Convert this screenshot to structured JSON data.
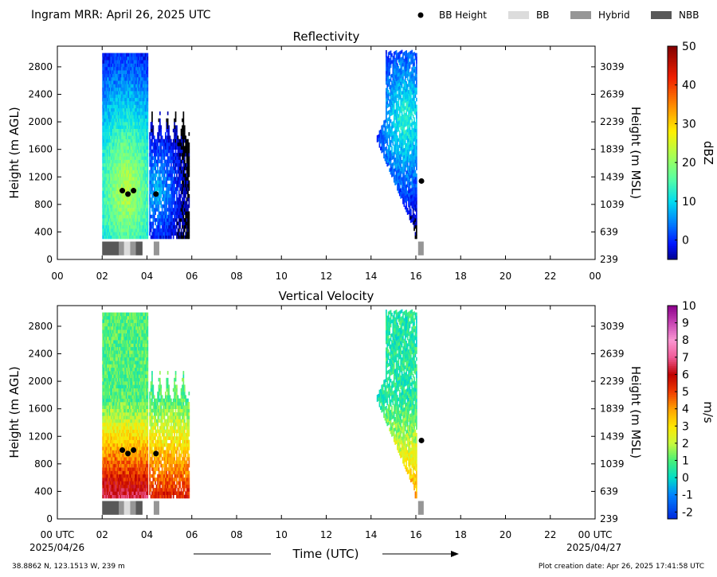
{
  "header": {
    "title": "Ingram MRR:  April 26, 2025 UTC",
    "legend": [
      {
        "label": "BB Height",
        "kind": "dot",
        "color": "#000000"
      },
      {
        "label": "BB",
        "kind": "swatch",
        "color": "#dcdcdc"
      },
      {
        "label": "Hybrid",
        "kind": "swatch",
        "color": "#969696"
      },
      {
        "label": "NBB",
        "kind": "swatch",
        "color": "#585858"
      }
    ]
  },
  "footer": {
    "location": "38.8862 N, 123.1513 W, 239 m",
    "creation": "Plot creation date: Apr 26, 2025 17:41:58 UTC",
    "xlabel": "Time (UTC)",
    "date_start": "2025/04/26",
    "date_end": "2025/04/27"
  },
  "chart_data": [
    {
      "type": "heatmap",
      "title": "Reflectivity",
      "ylabel": "Height (m AGL)",
      "ylabel_right": "Height (m MSL)",
      "xlim": [
        0,
        24
      ],
      "ylim": [
        0,
        3100
      ],
      "x_ticks": [
        "00",
        "02",
        "04",
        "06",
        "08",
        "10",
        "12",
        "14",
        "16",
        "18",
        "20",
        "22",
        "00"
      ],
      "y_ticks": [
        0,
        400,
        800,
        1200,
        1600,
        2000,
        2400,
        2800
      ],
      "y_ticks_right": [
        "239",
        "639",
        "1039",
        "1439",
        "1839",
        "2239",
        "2639",
        "3039"
      ],
      "colorbar": {
        "label": "dBZ",
        "range": [
          -5,
          50
        ],
        "ticks": [
          "0",
          "10",
          "20",
          "30",
          "40",
          "50"
        ],
        "tick_values": [
          0,
          10,
          20,
          30,
          40,
          50
        ],
        "colormap": "jet"
      },
      "bb_height": [
        {
          "time": 2.9,
          "height": 1000
        },
        {
          "time": 3.15,
          "height": 950
        },
        {
          "time": 3.4,
          "height": 1000
        },
        {
          "time": 4.4,
          "height": 950
        },
        {
          "time": 16.25,
          "height": 1140
        }
      ],
      "bb_class": [
        {
          "start": 2.0,
          "end": 2.75,
          "class": "NBB"
        },
        {
          "start": 2.75,
          "end": 2.98,
          "class": "Hybrid"
        },
        {
          "start": 2.98,
          "end": 3.25,
          "class": "BB"
        },
        {
          "start": 3.25,
          "end": 3.5,
          "class": "Hybrid"
        },
        {
          "start": 3.5,
          "end": 3.8,
          "class": "NBB"
        },
        {
          "start": 4.3,
          "end": 4.55,
          "class": "Hybrid"
        },
        {
          "start": 16.1,
          "end": 16.35,
          "class": "Hybrid"
        }
      ],
      "echo_regions": [
        {
          "start": 2.0,
          "end": 4.0,
          "top": 3000,
          "peak": 24,
          "peak_time": 3.05,
          "peak_height": 1000
        },
        {
          "start": 4.1,
          "end": 5.85,
          "top": 2200,
          "peak": 8,
          "peak_time": 4.45,
          "peak_height": 1000
        },
        {
          "start": 14.0,
          "end": 16.05,
          "top": 3000,
          "peak": 14,
          "peak_time": 15.5,
          "peak_height": 2000
        }
      ]
    },
    {
      "type": "heatmap",
      "title": "Vertical Velocity",
      "ylabel": "Height (m AGL)",
      "ylabel_right": "Height (m MSL)",
      "xlim": [
        0,
        24
      ],
      "ylim": [
        0,
        3100
      ],
      "x_ticks": [
        "00 UTC",
        "02",
        "04",
        "06",
        "08",
        "10",
        "12",
        "14",
        "16",
        "18",
        "20",
        "22",
        "00 UTC"
      ],
      "y_ticks": [
        0,
        400,
        800,
        1200,
        1600,
        2000,
        2400,
        2800
      ],
      "y_ticks_right": [
        "239",
        "639",
        "1039",
        "1439",
        "1839",
        "2239",
        "2639",
        "3039"
      ],
      "colorbar": {
        "label": "m/s",
        "range": [
          -2.4,
          10
        ],
        "ticks": [
          "-2",
          "-1",
          "0",
          "1",
          "2",
          "3",
          "4",
          "5",
          "6",
          "7",
          "8",
          "9",
          "10"
        ],
        "tick_values": [
          -2,
          -1,
          0,
          1,
          2,
          3,
          4,
          5,
          6,
          7,
          8,
          9,
          10
        ],
        "colormap": "velocity"
      },
      "bb_height": [
        {
          "time": 2.9,
          "height": 1000
        },
        {
          "time": 3.15,
          "height": 950
        },
        {
          "time": 3.4,
          "height": 1000
        },
        {
          "time": 4.4,
          "height": 950
        },
        {
          "time": 16.25,
          "height": 1140
        }
      ],
      "bb_class": [
        {
          "start": 2.0,
          "end": 2.75,
          "class": "NBB"
        },
        {
          "start": 2.75,
          "end": 2.98,
          "class": "Hybrid"
        },
        {
          "start": 2.98,
          "end": 3.25,
          "class": "BB"
        },
        {
          "start": 3.25,
          "end": 3.5,
          "class": "Hybrid"
        },
        {
          "start": 3.5,
          "end": 3.8,
          "class": "NBB"
        },
        {
          "start": 4.3,
          "end": 4.55,
          "class": "Hybrid"
        },
        {
          "start": 16.1,
          "end": 16.35,
          "class": "Hybrid"
        }
      ],
      "echo_regions": [
        {
          "start": 2.0,
          "end": 4.0,
          "top": 3000,
          "low_value": 6.5,
          "high_value": 1.0
        },
        {
          "start": 4.1,
          "end": 5.85,
          "top": 2200,
          "low_value": 5.5,
          "high_value": 1.0
        },
        {
          "start": 14.0,
          "end": 16.05,
          "top": 3000,
          "low_value": 4.0,
          "high_value": 0.5
        }
      ]
    }
  ]
}
